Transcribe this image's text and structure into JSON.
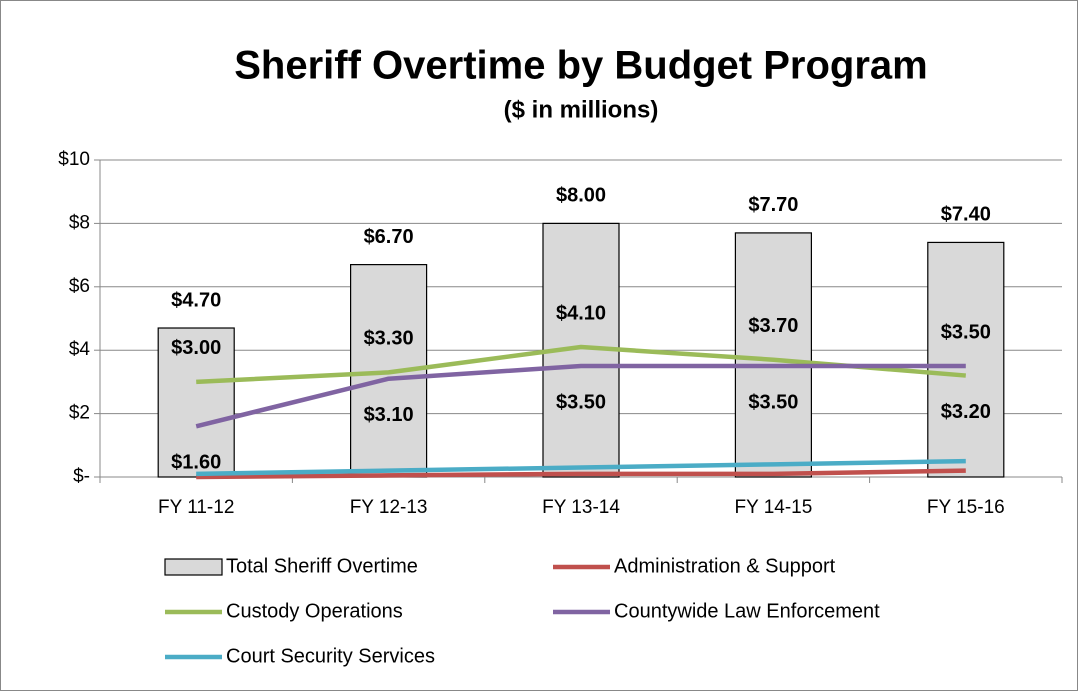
{
  "chart_data": {
    "type": "bar_line",
    "title": "Sheriff Overtime by Budget Program",
    "subtitle": "($ in millions)",
    "categories": [
      "FY 11-12",
      "FY 12-13",
      "FY 13-14",
      "FY 14-15",
      "FY 15-16"
    ],
    "ylim": [
      0,
      10
    ],
    "yticks": [
      {
        "value": 0,
        "label": "$-"
      },
      {
        "value": 2,
        "label": "$2"
      },
      {
        "value": 4,
        "label": "$4"
      },
      {
        "value": 6,
        "label": "$6"
      },
      {
        "value": 8,
        "label": "$8"
      },
      {
        "value": 10,
        "label": "$10"
      }
    ],
    "grid": true,
    "series": [
      {
        "name": "Total Sheriff Overtime",
        "type": "bar",
        "color": "#d9d9d9",
        "values": [
          4.7,
          6.7,
          8.0,
          7.7,
          7.4
        ],
        "value_labels": [
          "$4.70",
          "$6.70",
          "$8.00",
          "$7.70",
          "$7.40"
        ]
      },
      {
        "name": "Administration & Support",
        "type": "line",
        "color": "#c0504d",
        "values": [
          0,
          0.05,
          0.1,
          0.1,
          0.2
        ]
      },
      {
        "name": "Custody Operations",
        "type": "line",
        "color": "#9bbb59",
        "values": [
          3.0,
          3.3,
          4.1,
          3.7,
          3.2
        ],
        "value_labels": [
          "$3.00",
          "$3.30",
          "$4.10",
          "$3.70",
          "$3.20"
        ]
      },
      {
        "name": "Countywide Law Enforcement",
        "type": "line",
        "color": "#8064a2",
        "values": [
          1.6,
          3.1,
          3.5,
          3.5,
          3.5
        ],
        "value_labels": [
          "$1.60",
          "$3.10",
          "$3.50",
          "$3.50",
          "$3.50"
        ]
      },
      {
        "name": "Court Security Services",
        "type": "line",
        "color": "#4bacc6",
        "values": [
          0.1,
          0.2,
          0.3,
          0.4,
          0.5
        ]
      }
    ]
  }
}
